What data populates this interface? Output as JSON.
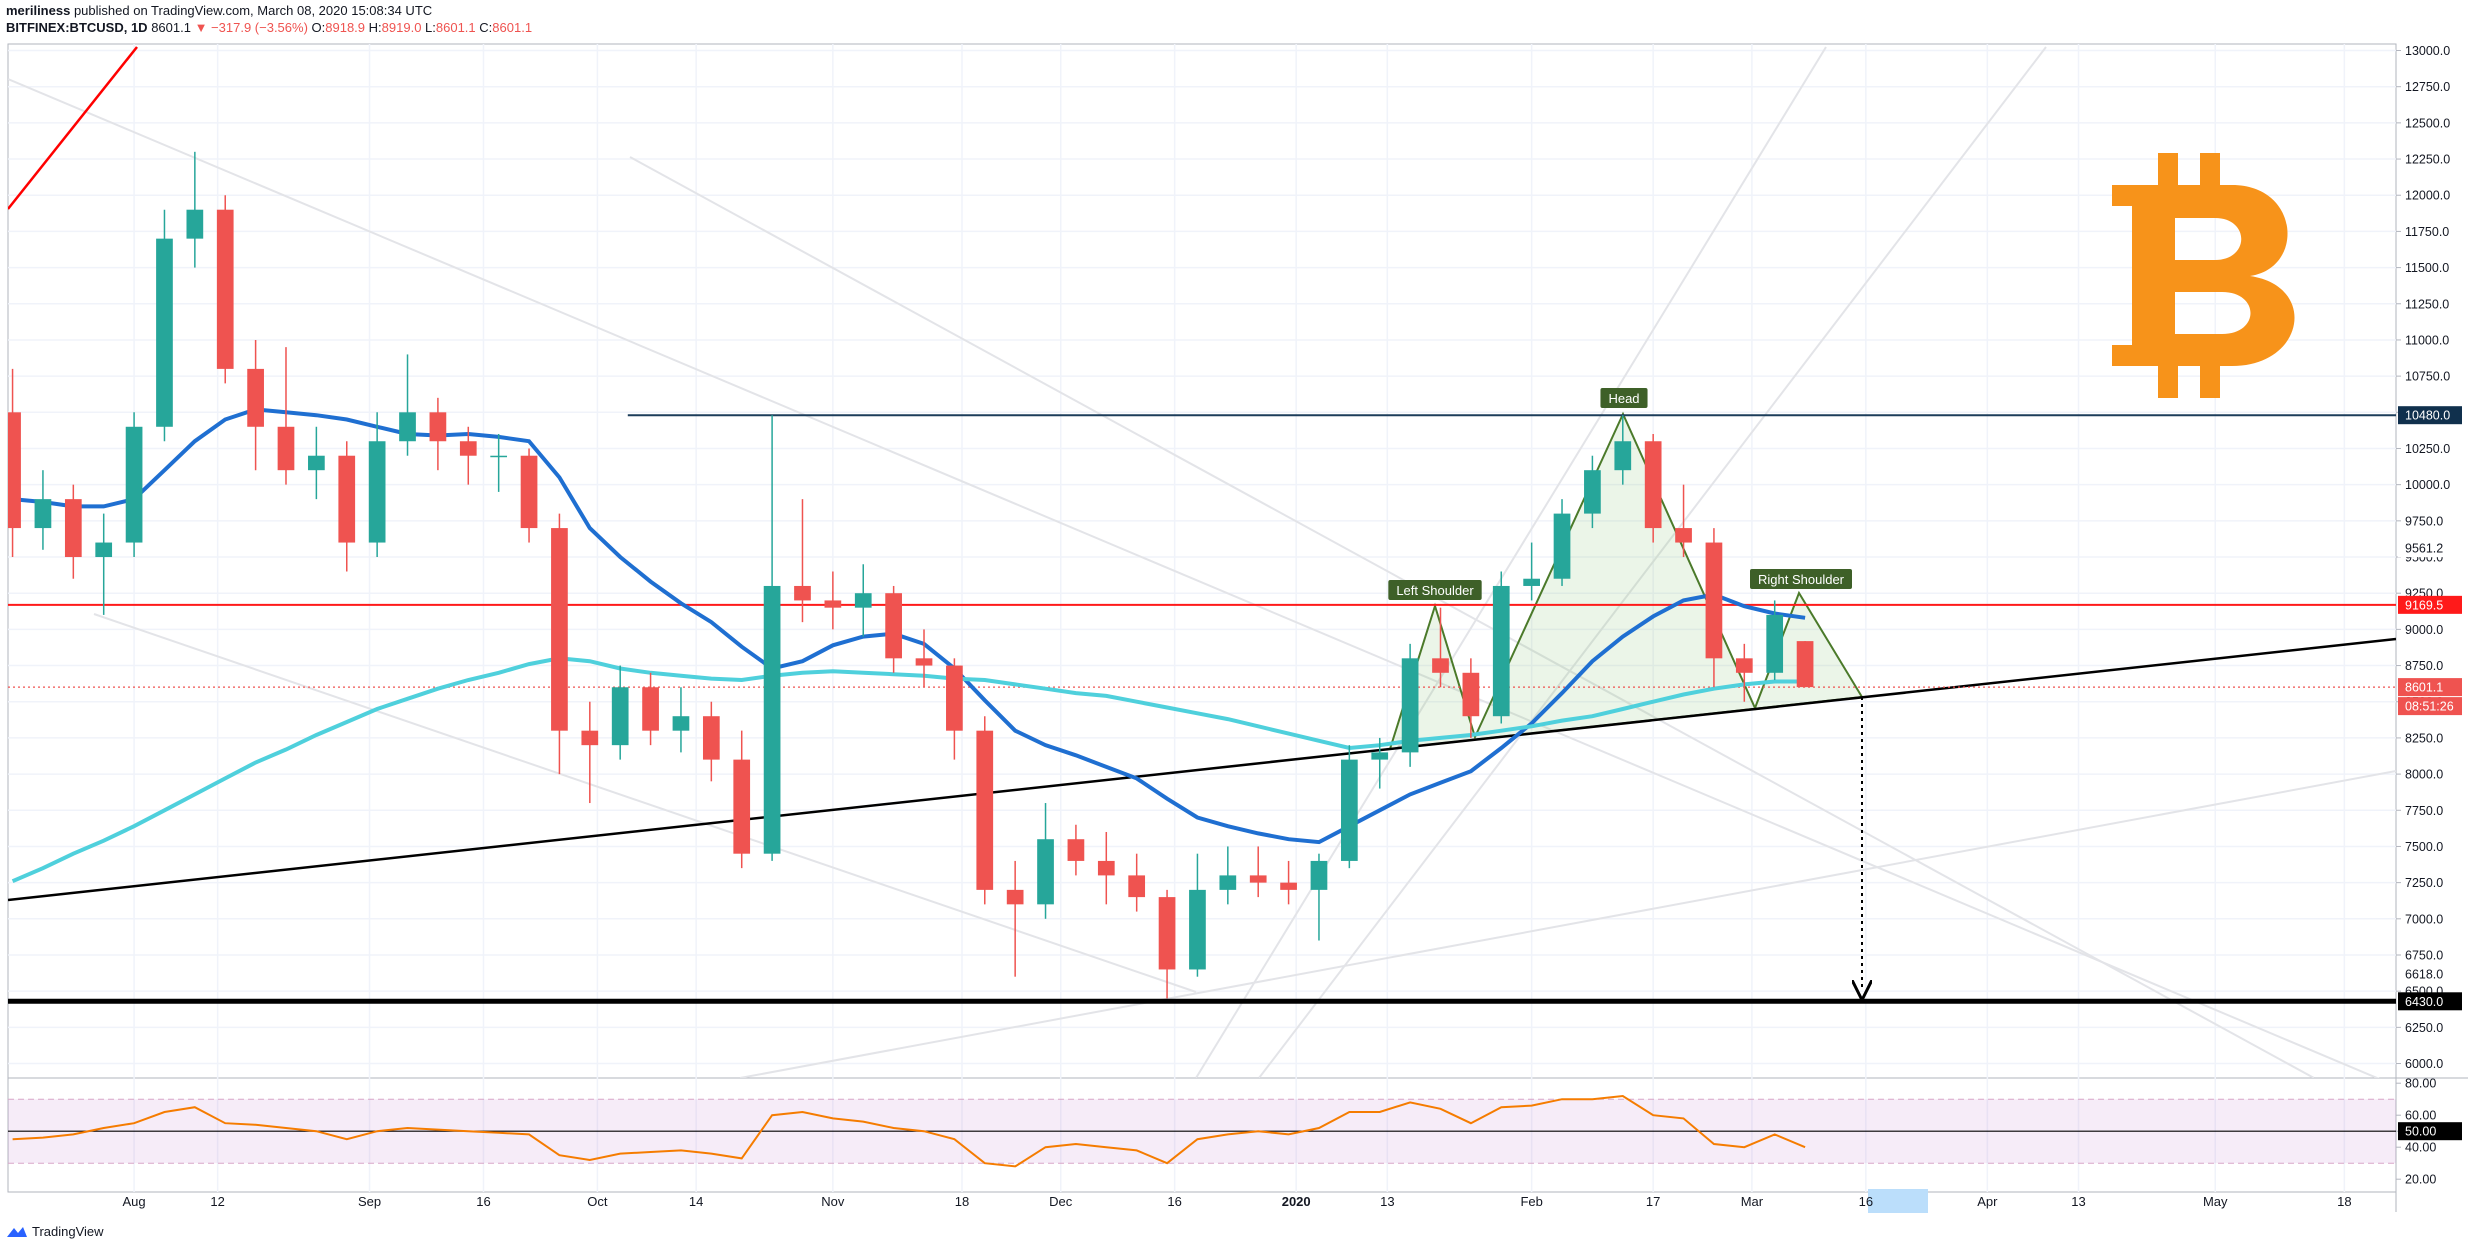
{
  "header": {
    "author": "meriliness",
    "published": "published on TradingView.com, March 08, 2020 15:08:34 UTC",
    "symbol": "BITFINEX:BTCUSD, 1D",
    "last": "8601.1",
    "change": "▼ −317.9 (−3.56%)",
    "ohlc": [
      {
        "k": "O:",
        "v": "8918.9"
      },
      {
        "k": "H:",
        "v": "8919.0"
      },
      {
        "k": "L:",
        "v": "8601.1"
      },
      {
        "k": "C:",
        "v": "8601.1"
      }
    ]
  },
  "footer": {
    "brand": "TradingView"
  },
  "chart_data": {
    "type": "candlestick",
    "up_color": "#26a69a",
    "down_color": "#ef5350",
    "x": [
      -16,
      -12,
      -8,
      -4,
      0,
      4,
      8,
      12,
      16,
      20,
      24,
      28,
      32,
      36,
      40,
      44,
      48,
      52,
      56,
      60,
      64,
      68,
      72,
      76,
      80,
      84,
      88,
      92,
      96,
      100,
      104,
      108,
      112,
      116,
      120,
      124,
      128,
      132,
      136,
      140,
      144,
      148,
      152,
      156,
      160,
      164,
      168,
      172,
      176,
      180,
      184,
      188,
      192,
      196,
      200,
      204,
      208,
      212,
      216,
      220
    ],
    "open": [
      10500,
      9700,
      9900,
      9500,
      9600,
      10400,
      11700,
      11900,
      10800,
      10400,
      10100,
      10200,
      9600,
      10300,
      10500,
      10300,
      10200,
      10200,
      9700,
      8300,
      8200,
      8600,
      8300,
      8400,
      8100,
      7450,
      9300,
      9200,
      9150,
      9250,
      8800,
      8750,
      8300,
      7200,
      7100,
      7550,
      7400,
      7300,
      7150,
      6650,
      7200,
      7300,
      7250,
      7200,
      7400,
      8100,
      8150,
      8800,
      8700,
      8400,
      9300,
      9350,
      9800,
      10100,
      10300,
      9700,
      9600,
      8800,
      8700,
      8918.9
    ],
    "high": [
      10800,
      10100,
      10000,
      9800,
      10500,
      11900,
      12300,
      12000,
      11000,
      10950,
      10400,
      10300,
      10500,
      10900,
      10600,
      10400,
      10350,
      10250,
      9800,
      8500,
      8750,
      8700,
      8600,
      8500,
      8300,
      10480,
      9900,
      9400,
      9450,
      9300,
      9000,
      8800,
      8400,
      7400,
      7800,
      7650,
      7600,
      7450,
      7200,
      7450,
      7500,
      7500,
      7400,
      7450,
      8200,
      8250,
      8900,
      9150,
      8800,
      9400,
      9600,
      9900,
      10200,
      10480,
      10350,
      10000,
      9700,
      8900,
      9200,
      8919.0
    ],
    "low": [
      9500,
      9550,
      9350,
      9100,
      9500,
      10300,
      11500,
      10700,
      10100,
      10000,
      9900,
      9400,
      9500,
      10200,
      10100,
      10000,
      9950,
      9600,
      8000,
      7800,
      8100,
      8200,
      8150,
      7950,
      7350,
      7400,
      9050,
      9000,
      8950,
      8700,
      8600,
      8100,
      7100,
      6600,
      7000,
      7300,
      7100,
      7050,
      6450,
      6600,
      7100,
      7150,
      7100,
      6850,
      7350,
      7900,
      8050,
      8600,
      8250,
      8350,
      9200,
      9300,
      9700,
      10000,
      9600,
      9500,
      8600,
      8500,
      8650,
      8601.1
    ],
    "close": [
      9700,
      9900,
      9500,
      9600,
      10400,
      11700,
      11900,
      10800,
      10400,
      10100,
      10200,
      9600,
      10300,
      10500,
      10300,
      10200,
      10200,
      9700,
      8300,
      8200,
      8600,
      8300,
      8400,
      8100,
      7450,
      9300,
      9200,
      9150,
      9250,
      8800,
      8750,
      8300,
      7200,
      7100,
      7550,
      7400,
      7300,
      7150,
      6650,
      7200,
      7300,
      7250,
      7200,
      7400,
      8100,
      8150,
      8800,
      8700,
      8400,
      9300,
      9350,
      9800,
      10100,
      10300,
      9700,
      9600,
      8800,
      8700,
      9100,
      8601.1
    ],
    "overlays": [
      {
        "color": "#1f6fd1",
        "width": 4,
        "values": [
          9900,
          9880,
          9850,
          9850,
          9900,
          10100,
          10300,
          10450,
          10520,
          10500,
          10480,
          10450,
          10400,
          10350,
          10340,
          10350,
          10330,
          10300,
          10050,
          9700,
          9500,
          9330,
          9180,
          9050,
          8880,
          8730,
          8780,
          8890,
          8950,
          8970,
          8900,
          8730,
          8510,
          8300,
          8200,
          8130,
          8050,
          7970,
          7830,
          7700,
          7640,
          7590,
          7550,
          7530,
          7640,
          7750,
          7860,
          7940,
          8020,
          8180,
          8350,
          8560,
          8780,
          8950,
          9090,
          9200,
          9240,
          9160,
          9110,
          9080
        ]
      },
      {
        "color": "#4fd0dc",
        "width": 4,
        "values": [
          7260,
          7350,
          7450,
          7540,
          7640,
          7750,
          7860,
          7970,
          8080,
          8170,
          8270,
          8360,
          8450,
          8520,
          8590,
          8650,
          8700,
          8760,
          8800,
          8780,
          8730,
          8700,
          8680,
          8660,
          8650,
          8680,
          8700,
          8710,
          8700,
          8690,
          8680,
          8660,
          8650,
          8620,
          8590,
          8560,
          8540,
          8500,
          8460,
          8420,
          8380,
          8330,
          8280,
          8230,
          8180,
          8200,
          8230,
          8250,
          8270,
          8300,
          8330,
          8370,
          8400,
          8450,
          8500,
          8550,
          8590,
          8620,
          8640,
          8640
        ]
      }
    ],
    "xlim": [
      -16.6,
      297.8
    ],
    "xticks": [
      {
        "value": 0,
        "label": "Aug"
      },
      {
        "value": 11,
        "label": "12"
      },
      {
        "value": 31,
        "label": "Sep"
      },
      {
        "value": 46,
        "label": "16"
      },
      {
        "value": 61,
        "label": "Oct"
      },
      {
        "value": 74,
        "label": "14"
      },
      {
        "value": 92,
        "label": "Nov"
      },
      {
        "value": 109,
        "label": "18"
      },
      {
        "value": 122,
        "label": "Dec"
      },
      {
        "value": 137,
        "label": "16"
      },
      {
        "value": 153,
        "label": "2020"
      },
      {
        "value": 165,
        "label": "13"
      },
      {
        "value": 184,
        "label": "Feb"
      },
      {
        "value": 200,
        "label": "17"
      },
      {
        "value": 213,
        "label": "Mar"
      },
      {
        "value": 228,
        "label": "16"
      },
      {
        "value": 244,
        "label": "Apr"
      },
      {
        "value": 256,
        "label": "13"
      },
      {
        "value": 274,
        "label": "May"
      },
      {
        "value": 291,
        "label": "18"
      }
    ],
    "ylim": [
      5900,
      13045
    ],
    "yticks": [
      {
        "value": 6000,
        "label": "6000.0"
      },
      {
        "value": 6250,
        "label": "6250.0"
      },
      {
        "value": 6500,
        "label": "6500.0"
      },
      {
        "value": 6750,
        "label": "6750.0"
      },
      {
        "value": 7000,
        "label": "7000.0"
      },
      {
        "value": 7250,
        "label": "7250.0"
      },
      {
        "value": 7500,
        "label": "7500.0"
      },
      {
        "value": 7750,
        "label": "7750.0"
      },
      {
        "value": 8000,
        "label": "8000.0"
      },
      {
        "value": 8250,
        "label": "8250.0"
      },
      {
        "value": 8500,
        "label": "8500.0"
      },
      {
        "value": 8750,
        "label": "8750.0"
      },
      {
        "value": 9000,
        "label": "9000.0"
      },
      {
        "value": 9250,
        "label": "9250.0"
      },
      {
        "value": 9500,
        "label": "9500.0"
      },
      {
        "value": 9750,
        "label": "9750.0"
      },
      {
        "value": 10000,
        "label": "10000.0"
      },
      {
        "value": 10250,
        "label": "10250.0"
      },
      {
        "value": 10500,
        "label": "10500.0"
      },
      {
        "value": 10750,
        "label": "10750.0"
      },
      {
        "value": 11000,
        "label": "11000.0"
      },
      {
        "value": 11250,
        "label": "11250.0"
      },
      {
        "value": 11500,
        "label": "11500.0"
      },
      {
        "value": 11750,
        "label": "11750.0"
      },
      {
        "value": 12000,
        "label": "12000.0"
      },
      {
        "value": 12250,
        "label": "12250.0"
      },
      {
        "value": 12500,
        "label": "12500.0"
      },
      {
        "value": 12750,
        "label": "12750.0"
      },
      {
        "value": 13000,
        "label": "13000.0"
      }
    ],
    "grid": true,
    "levels": [
      {
        "value": 10480,
        "label": "10480.0",
        "bg": "#10304d",
        "fg": "#ffffff",
        "line": "solid",
        "line_color": "#1c3d5a",
        "x_start": 65
      },
      {
        "value": 9561.2,
        "label": "9561.2",
        "bg": "#ffffff",
        "fg": "#131722",
        "line": "none"
      },
      {
        "value": 9169.5,
        "label": "9169.5",
        "bg": "#ff1a1a",
        "fg": "#ffffff",
        "line": "solid",
        "line_color": "#ff1a1a"
      },
      {
        "value": 8601.1,
        "label": "8601.1",
        "bg": "#ef5350",
        "fg": "#ffffff",
        "line": "dotted",
        "line_color": "#ef5350",
        "countdown": "08:51:26"
      },
      {
        "value": 6618,
        "label": "6618.0",
        "bg": "#ffffff",
        "fg": "#131722",
        "line": "none"
      },
      {
        "value": 6430,
        "label": "6430.0",
        "bg": "#000000",
        "fg": "#ffffff",
        "line": "thick",
        "line_color": "#000000"
      }
    ],
    "annotations": [
      "Left Shoulder",
      "Head",
      "Right Shoulder"
    ],
    "rsi": {
      "color": "#f57c00",
      "values": [
        45,
        46,
        48,
        52,
        55,
        62,
        65,
        55,
        54,
        52,
        50,
        45,
        50,
        52,
        51,
        50,
        49,
        48,
        35,
        32,
        36,
        37,
        38,
        36,
        33,
        60,
        62,
        58,
        56,
        52,
        50,
        45,
        30,
        28,
        40,
        42,
        40,
        38,
        30,
        45,
        48,
        50,
        48,
        52,
        62,
        62,
        68,
        64,
        55,
        65,
        66,
        70,
        70,
        72,
        60,
        58,
        42,
        40,
        48,
        40
      ],
      "ylim": [
        12,
        82
      ],
      "yticks": [
        {
          "value": 80,
          "label": "80.00"
        },
        {
          "value": 60,
          "label": "60.00"
        },
        {
          "value": 50,
          "label": "50.00"
        },
        {
          "value": 40,
          "label": "40.00"
        },
        {
          "value": 20,
          "label": "20.00"
        }
      ],
      "band": [
        30,
        70
      ],
      "midline": 50
    }
  }
}
